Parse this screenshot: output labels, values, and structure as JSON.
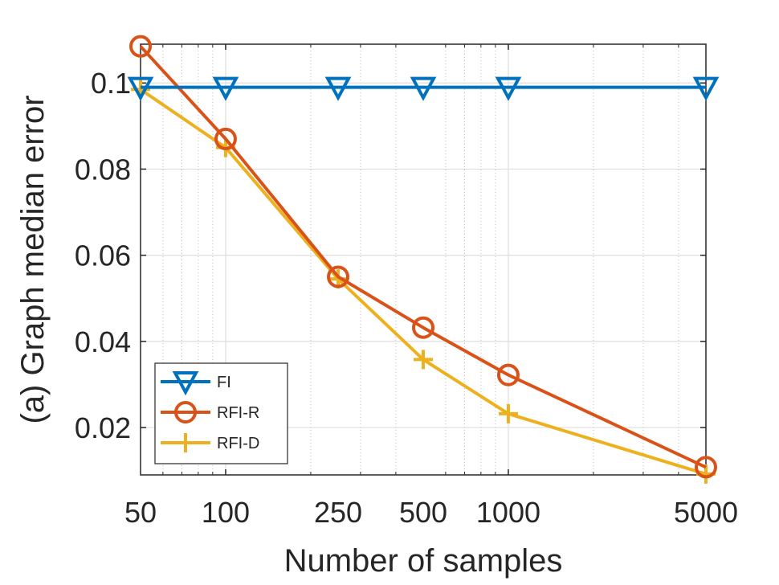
{
  "chart_data": {
    "type": "line",
    "xscale": "log",
    "x": [
      50,
      100,
      250,
      500,
      1000,
      5000
    ],
    "x_tick_labels": [
      "50",
      "100",
      "250",
      "500",
      "1000",
      "5000"
    ],
    "y_ticks": [
      0.02,
      0.04,
      0.06,
      0.08,
      0.1
    ],
    "y_tick_labels": [
      "0.02",
      "0.04",
      "0.06",
      "0.08",
      "0.1"
    ],
    "xlim": [
      50,
      5000
    ],
    "ylim": [
      0.009,
      0.109
    ],
    "xlabel": "Number of samples",
    "ylabel": "(a) Graph median error",
    "grid": true,
    "legend_position": "bottom-left",
    "series": [
      {
        "name": "FI",
        "marker": "triangle-down",
        "color": "#0072BD",
        "values": [
          0.099,
          0.099,
          0.099,
          0.099,
          0.099,
          0.099
        ]
      },
      {
        "name": "RFI-R",
        "marker": "circle",
        "color": "#D95319",
        "values": [
          0.1085,
          0.087,
          0.055,
          0.0432,
          0.0322,
          0.0108
        ]
      },
      {
        "name": "RFI-D",
        "marker": "plus",
        "color": "#EDB120",
        "values": [
          0.0985,
          0.085,
          0.0545,
          0.0358,
          0.0232,
          0.0092
        ]
      }
    ]
  }
}
